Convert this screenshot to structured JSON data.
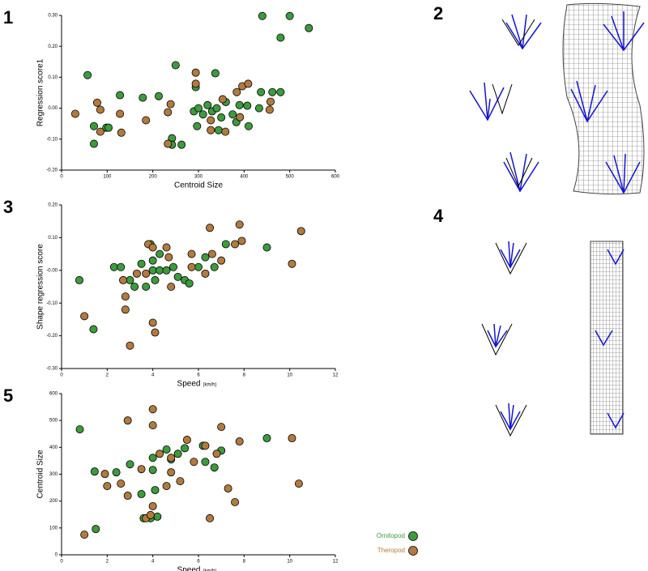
{
  "chart_data": [
    {
      "type": "scatter",
      "panel": "1",
      "xlabel": "Centroid Size",
      "ylabel": "Regression score1",
      "xlim": [
        0,
        600
      ],
      "xticks": [
        0,
        100,
        200,
        300,
        400,
        500,
        600
      ],
      "ylim": [
        -0.2,
        0.3
      ],
      "yticks": [
        {
          "value": -0.2,
          "label": "-0.20"
        },
        {
          "value": -0.1,
          "label": "-0.10"
        },
        {
          "value": 0,
          "label": "0.00"
        },
        {
          "value": 0.1,
          "label": "0.10"
        },
        {
          "value": 0.2,
          "label": "0.20"
        },
        {
          "value": 0.3,
          "label": "0.30"
        }
      ],
      "series": [
        {
          "name": "Ornitopod",
          "color": "#3d9b3d",
          "x": [
            57,
            440,
            500,
            542,
            480,
            250,
            337,
            294,
            462,
            480,
            437,
            290,
            300,
            310,
            320,
            330,
            340,
            350,
            360,
            375,
            390,
            71,
            71,
            98,
            103,
            128,
            178,
            213,
            242,
            242,
            263,
            297,
            344,
            383,
            410,
            433,
            407
          ],
          "values": [
            0.107,
            0.298,
            0.298,
            0.259,
            0.228,
            0.139,
            0.113,
            0.068,
            0.052,
            0.052,
            0.052,
            -0.01,
            0.0,
            -0.02,
            0.01,
            -0.01,
            0.0,
            -0.03,
            0.02,
            -0.02,
            0.01,
            -0.058,
            -0.115,
            -0.063,
            -0.063,
            0.042,
            0.034,
            0.039,
            -0.097,
            -0.118,
            -0.118,
            -0.058,
            -0.071,
            -0.045,
            -0.058,
            0.0,
            0.008
          ]
        },
        {
          "name": "Theropod",
          "color": "#b27b3e",
          "x": [
            30,
            78,
            85,
            128,
            131,
            185,
            294,
            294,
            353,
            384,
            396,
            409,
            458,
            456,
            391,
            359,
            327,
            327,
            233,
            239,
            233,
            85
          ],
          "values": [
            -0.018,
            0.018,
            -0.005,
            -0.018,
            -0.079,
            -0.039,
            0.115,
            0.079,
            0.029,
            0.052,
            0.071,
            0.079,
            0.021,
            -0.005,
            -0.029,
            -0.076,
            -0.071,
            -0.039,
            -0.013,
            0.013,
            -0.115,
            -0.076
          ]
        }
      ]
    },
    {
      "type": "scatter",
      "panel": "3",
      "xlabel": "Speed",
      "xlabel_unit": "(km/h)",
      "ylabel": "Shape regression score",
      "xlim": [
        0,
        12
      ],
      "xticks": [
        0,
        2,
        4,
        6,
        8,
        10,
        12
      ],
      "ylim": [
        -0.3,
        0.2
      ],
      "yticks": [
        {
          "value": -0.3,
          "label": "-0.30"
        },
        {
          "value": -0.2,
          "label": "-0.20"
        },
        {
          "value": -0.1,
          "label": "-0.10"
        },
        {
          "value": 0,
          "label": "-0.00"
        },
        {
          "value": 0.1,
          "label": "0.10"
        },
        {
          "value": 0.2,
          "label": "0.20"
        }
      ],
      "series": [
        {
          "name": "Ornitopod",
          "color": "#3d9b3d",
          "x": [
            0.78,
            1.4,
            2.3,
            2.6,
            3.0,
            3.2,
            3.5,
            3.7,
            3.9,
            4.0,
            4.0,
            4.1,
            4.3,
            4.6,
            4.9,
            5.1,
            5.4,
            5.6,
            6.0,
            6.3,
            6.7,
            7.2,
            9.0,
            4.3
          ],
          "values": [
            -0.03,
            -0.18,
            0.01,
            0.01,
            -0.03,
            -0.05,
            0.02,
            -0.05,
            0.08,
            0.03,
            0.0,
            -0.03,
            0.0,
            0.0,
            0.01,
            -0.02,
            -0.03,
            -0.04,
            0.01,
            0.04,
            0.01,
            0.08,
            0.07,
            0.05
          ]
        },
        {
          "name": "Theropod",
          "color": "#b27b3e",
          "x": [
            1.0,
            2.7,
            2.8,
            2.8,
            3.0,
            3.3,
            3.7,
            3.8,
            4.0,
            4.0,
            4.1,
            4.6,
            4.7,
            4.8,
            5.7,
            6.5,
            6.6,
            7.0,
            7.6,
            7.8,
            7.9,
            10.1,
            10.5,
            5.7,
            6.3
          ],
          "values": [
            -0.14,
            -0.03,
            -0.08,
            -0.12,
            -0.23,
            -0.01,
            -0.01,
            0.08,
            0.07,
            -0.16,
            -0.19,
            0.07,
            0.04,
            -0.05,
            0.05,
            0.13,
            0.05,
            0.03,
            0.08,
            0.14,
            0.09,
            0.02,
            0.12,
            0.01,
            -0.01
          ]
        }
      ]
    },
    {
      "type": "scatter",
      "panel": "5",
      "xlabel": "Speed",
      "xlabel_unit": "(km/h)",
      "ylabel": "Centroid Size",
      "xlim": [
        0,
        12
      ],
      "xticks": [
        0,
        2,
        4,
        6,
        8,
        10,
        12
      ],
      "ylim": [
        0,
        600
      ],
      "yticks": [
        0,
        100,
        200,
        300,
        400,
        500,
        600
      ],
      "legend": "bottom-right",
      "series": [
        {
          "name": "Ornitopod",
          "color": "#3d9b3d",
          "x": [
            0.8,
            1.45,
            1.5,
            2.4,
            3.0,
            3.5,
            3.6,
            4.0,
            4.0,
            4.1,
            4.2,
            4.6,
            4.8,
            5.1,
            5.4,
            6.2,
            6.3,
            6.7,
            7.0,
            9.0,
            3.9
          ],
          "values": [
            467,
            310,
            96,
            307,
            337,
            226,
            136,
            316,
            361,
            241,
            142,
            392,
            355,
            376,
            397,
            406,
            346,
            325,
            388,
            434,
            136
          ]
        },
        {
          "name": "Theropod",
          "color": "#b27b3e",
          "x": [
            1.0,
            1.9,
            2.0,
            2.6,
            2.9,
            2.9,
            3.5,
            3.7,
            3.9,
            4.0,
            4.0,
            4.0,
            4.6,
            4.8,
            4.8,
            5.2,
            5.5,
            5.8,
            6.3,
            6.5,
            6.8,
            7.0,
            7.3,
            7.6,
            7.8,
            10.1,
            10.4,
            4.3
          ],
          "values": [
            75,
            301,
            256,
            265,
            500,
            220,
            319,
            136,
            148,
            542,
            482,
            181,
            256,
            307,
            361,
            274,
            428,
            346,
            406,
            136,
            376,
            476,
            247,
            196,
            422,
            434,
            265,
            376
          ]
        }
      ]
    }
  ],
  "diagram_labels": [
    "2",
    "4"
  ]
}
